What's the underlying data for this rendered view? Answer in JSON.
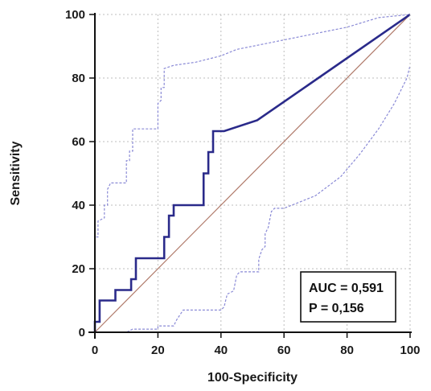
{
  "chart_data": {
    "type": "line",
    "xlabel": "100-Specificity",
    "ylabel": "Sensitivity",
    "xlim": [
      0,
      100
    ],
    "ylim": [
      0,
      100
    ],
    "xticks": [
      0,
      20,
      40,
      60,
      80,
      100
    ],
    "yticks": [
      0,
      20,
      40,
      60,
      80,
      100
    ],
    "grid": true,
    "annotation": {
      "lines": [
        "AUC = 0,591",
        "P = 0,156"
      ],
      "placement": "bottom-right"
    },
    "series": [
      {
        "role": "roc",
        "style": "solid",
        "color": "#2a2a8a",
        "points": [
          [
            0,
            0
          ],
          [
            0,
            3.3
          ],
          [
            1.5,
            3.3
          ],
          [
            1.5,
            10
          ],
          [
            6.5,
            10
          ],
          [
            6.5,
            13.3
          ],
          [
            11.5,
            13.3
          ],
          [
            11.5,
            16.7
          ],
          [
            13,
            16.7
          ],
          [
            13,
            23.3
          ],
          [
            22,
            23.3
          ],
          [
            22,
            30
          ],
          [
            23.5,
            30
          ],
          [
            23.5,
            36.7
          ],
          [
            25,
            36.7
          ],
          [
            25,
            40
          ],
          [
            34.5,
            40
          ],
          [
            34.5,
            50
          ],
          [
            36,
            50
          ],
          [
            36,
            56.7
          ],
          [
            37.5,
            56.7
          ],
          [
            37.5,
            63.3
          ],
          [
            41,
            63.3
          ],
          [
            51.5,
            66.7
          ],
          [
            100,
            100
          ]
        ]
      },
      {
        "role": "ci-upper",
        "style": "dashed",
        "color": "#8a8ad6",
        "points": [
          [
            0,
            0
          ],
          [
            0,
            30
          ],
          [
            1,
            30
          ],
          [
            1,
            35
          ],
          [
            3,
            36
          ],
          [
            3,
            40
          ],
          [
            4,
            40
          ],
          [
            4,
            45
          ],
          [
            5,
            47
          ],
          [
            10,
            47
          ],
          [
            10,
            54
          ],
          [
            11,
            54
          ],
          [
            11,
            57
          ],
          [
            12,
            57
          ],
          [
            12,
            64
          ],
          [
            20,
            64
          ],
          [
            20,
            72
          ],
          [
            21,
            73
          ],
          [
            21,
            77
          ],
          [
            22,
            77
          ],
          [
            22,
            83
          ],
          [
            25,
            84
          ],
          [
            32,
            85
          ],
          [
            40,
            87
          ],
          [
            45,
            89
          ],
          [
            50,
            90
          ],
          [
            60,
            92
          ],
          [
            70,
            94
          ],
          [
            80,
            96
          ],
          [
            90,
            99
          ],
          [
            100,
            100
          ]
        ]
      },
      {
        "role": "ci-lower",
        "style": "dashed",
        "color": "#8a8ad6",
        "points": [
          [
            0,
            0
          ],
          [
            10,
            0
          ],
          [
            12,
            1
          ],
          [
            20,
            1
          ],
          [
            20,
            2
          ],
          [
            25,
            2
          ],
          [
            26,
            4
          ],
          [
            28,
            7
          ],
          [
            40,
            7
          ],
          [
            41,
            8
          ],
          [
            42,
            12
          ],
          [
            44,
            13
          ],
          [
            45,
            18
          ],
          [
            46,
            19
          ],
          [
            52,
            19
          ],
          [
            52,
            23
          ],
          [
            53,
            26
          ],
          [
            54,
            27
          ],
          [
            54,
            31
          ],
          [
            55,
            33
          ],
          [
            56,
            38
          ],
          [
            57,
            39
          ],
          [
            60,
            39
          ],
          [
            65,
            41
          ],
          [
            70,
            43
          ],
          [
            78,
            49
          ],
          [
            84,
            56
          ],
          [
            90,
            64
          ],
          [
            95,
            72
          ],
          [
            99,
            80
          ],
          [
            100,
            84
          ]
        ]
      },
      {
        "role": "diagonal",
        "style": "solid",
        "color": "#b07a6a",
        "points": [
          [
            0,
            0
          ],
          [
            100,
            100
          ]
        ]
      }
    ]
  }
}
